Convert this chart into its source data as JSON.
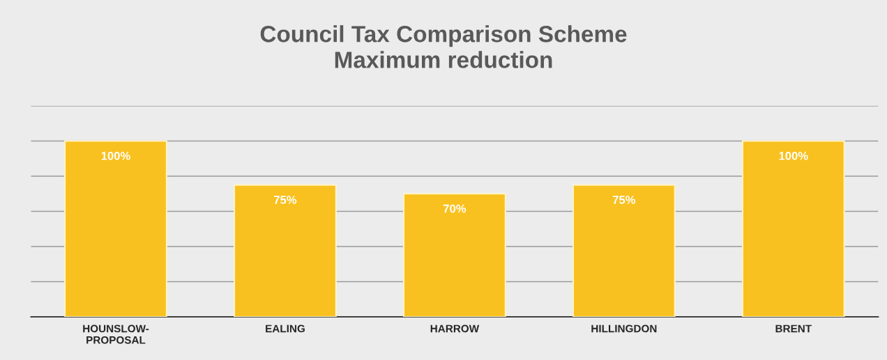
{
  "chart_data": {
    "type": "bar",
    "title": "Council Tax Comparison Scheme\nMaximum reduction",
    "categories": [
      "HOUNSLOW-\nPROPOSAL",
      "EALING",
      "HARROW",
      "HILLINGDON",
      "BRENT"
    ],
    "values": [
      100,
      75,
      70,
      75,
      100
    ],
    "color": "#f9c11f",
    "value_labels": [
      "100%",
      "75%",
      "70%",
      "75%",
      "100%"
    ],
    "ylim": [
      0,
      120
    ],
    "yticks": [
      {
        "value": 20,
        "label": null
      },
      {
        "value": 40,
        "label": null
      },
      {
        "value": 60,
        "label": null
      },
      {
        "value": 80,
        "label": null
      },
      {
        "value": 100,
        "label": null
      },
      {
        "value": 120,
        "label": null
      }
    ],
    "grid": "y",
    "legend": false
  }
}
